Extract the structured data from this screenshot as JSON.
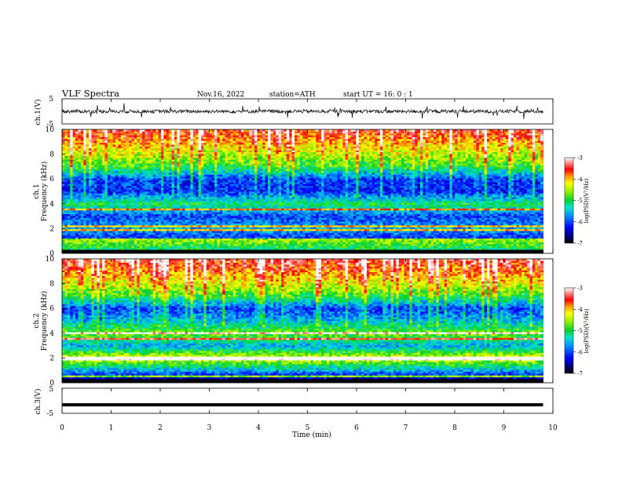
{
  "header": {
    "title": "VLF  Spectra",
    "date": "Nov.16, 2022",
    "station": "station=ATH",
    "start": "start  UT  =   16: 0   : 1"
  },
  "chart_data": [
    {
      "type": "line",
      "name": "waveform-ch1",
      "ylabel": "ch.1(V)",
      "ylim": [
        -5,
        5
      ],
      "yticks": [
        "5",
        "-5"
      ],
      "xlim": [
        0,
        10
      ],
      "baseline": 0,
      "color": "#000000"
    },
    {
      "type": "heatmap",
      "name": "spectrogram-ch1",
      "ylabel": "ch.1\nFrequency  (kHz)",
      "ylabel_line1": "ch.1",
      "ylabel_line2": "Frequency  (kHz)",
      "ylim": [
        0,
        10
      ],
      "yticks": [
        "10",
        "8",
        "6",
        "4",
        "2",
        "0"
      ],
      "xlim": [
        0,
        9.8
      ],
      "colorbar": {
        "label": "log(PSD)(V²/Hz)",
        "range": [
          -7,
          -3
        ],
        "ticks": [
          "-3",
          "-4",
          "-5",
          "-6",
          "-7"
        ]
      },
      "profile_khz": [
        0,
        1,
        2,
        3,
        4,
        5,
        6,
        7,
        8,
        9,
        10
      ],
      "profile_log_psd": [
        -7,
        -6.2,
        -5.6,
        -6.0,
        -5.0,
        -6.2,
        -6.1,
        -5.0,
        -4.5,
        -4.0,
        -3.6
      ],
      "lines_khz": [
        0.3,
        0.6,
        0.9,
        1.1,
        1.9,
        2.2,
        3.6
      ]
    },
    {
      "type": "heatmap",
      "name": "spectrogram-ch2",
      "ylabel": "ch.2\nFrequency  (kHz)",
      "ylabel_line1": "ch.2",
      "ylabel_line2": "Frequency  (kHz)",
      "ylim": [
        0,
        10
      ],
      "yticks": [
        "10",
        "8",
        "6",
        "4",
        "2",
        "0"
      ],
      "xlim": [
        0,
        9.8
      ],
      "colorbar": {
        "label": "log(PSD)(V²/Hz)",
        "range": [
          -7,
          -3
        ],
        "ticks": [
          "-3",
          "-4",
          "-5",
          "-6",
          "-7"
        ]
      },
      "profile_khz": [
        0,
        1,
        2,
        3,
        4,
        5,
        6,
        7,
        8,
        9,
        10
      ],
      "profile_log_psd": [
        -7,
        -5.6,
        -4.2,
        -5.6,
        -4.6,
        -5.6,
        -6.1,
        -5.0,
        -4.4,
        -3.9,
        -3.5
      ],
      "lines_khz": [
        0.2,
        0.5,
        1.9,
        2.0,
        3.6,
        4.0
      ]
    },
    {
      "type": "line",
      "name": "waveform-ch3",
      "ylabel": "ch.3(V)",
      "ylim": [
        -5,
        5
      ],
      "yticks": [
        "5",
        "-5"
      ],
      "xlim": [
        0,
        10
      ],
      "baseline": -1.6,
      "color": "#000000"
    }
  ],
  "xaxis": {
    "label": "Time  (min)",
    "ticks": [
      "0",
      "1",
      "2",
      "3",
      "4",
      "5",
      "6",
      "7",
      "8",
      "9",
      "10"
    ],
    "range": [
      0,
      10
    ]
  }
}
